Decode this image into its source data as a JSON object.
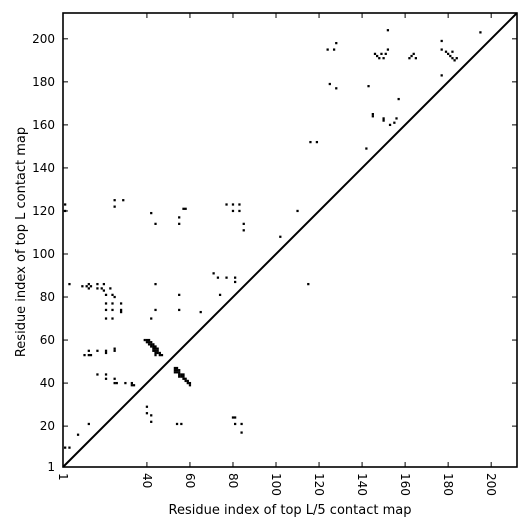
{
  "chart_data": {
    "type": "scatter",
    "xlabel": "Residue index of top L/5 contact map",
    "ylabel": "Residue index of top L contact map",
    "xlim": [
      1,
      212
    ],
    "ylim": [
      1,
      212
    ],
    "xticks": [
      1,
      40,
      60,
      80,
      100,
      120,
      140,
      160,
      180,
      200
    ],
    "yticks": [
      1,
      20,
      40,
      60,
      80,
      100,
      120,
      140,
      160,
      180,
      200
    ],
    "xtick_rotation": -90,
    "grid": false,
    "marker": "square",
    "marker_color": "#000000",
    "diagonal": {
      "from": [
        1,
        1
      ],
      "to": [
        212,
        212
      ],
      "color": "#000000"
    },
    "series": [
      {
        "points_above_diagonal": [
          [
            2,
            120
          ],
          [
            2,
            123
          ],
          [
            4,
            86
          ],
          [
            10,
            85
          ],
          [
            12,
            85
          ],
          [
            13,
            84
          ],
          [
            13,
            86
          ],
          [
            14,
            85
          ],
          [
            17,
            86
          ],
          [
            17,
            84
          ],
          [
            19,
            84
          ],
          [
            20,
            83
          ],
          [
            20,
            86
          ],
          [
            21,
            81
          ],
          [
            23,
            84
          ],
          [
            24,
            81
          ],
          [
            25,
            80
          ],
          [
            21,
            77
          ],
          [
            24,
            77
          ],
          [
            21,
            74
          ],
          [
            24,
            74
          ],
          [
            21,
            70
          ],
          [
            24,
            70
          ],
          [
            28,
            77
          ],
          [
            28,
            74
          ],
          [
            28,
            73
          ],
          [
            11,
            53
          ],
          [
            13,
            55
          ],
          [
            13,
            53
          ],
          [
            14,
            53
          ],
          [
            17,
            55
          ],
          [
            21,
            55
          ],
          [
            21,
            54
          ],
          [
            25,
            55
          ],
          [
            25,
            56
          ],
          [
            17,
            44
          ],
          [
            21,
            44
          ],
          [
            21,
            42
          ],
          [
            25,
            42
          ],
          [
            25,
            40
          ],
          [
            26,
            40
          ],
          [
            30,
            40
          ],
          [
            33,
            40
          ],
          [
            33,
            39
          ],
          [
            34,
            39
          ],
          [
            25,
            125
          ],
          [
            25,
            122
          ],
          [
            29,
            125
          ],
          [
            42,
            119
          ],
          [
            44,
            114
          ],
          [
            44,
            86
          ],
          [
            44,
            74
          ],
          [
            42,
            70
          ],
          [
            55,
            117
          ],
          [
            55,
            114
          ],
          [
            55,
            81
          ],
          [
            55,
            74
          ],
          [
            57,
            121
          ],
          [
            58,
            121
          ],
          [
            65,
            73
          ],
          [
            71,
            91
          ],
          [
            73,
            89
          ],
          [
            74,
            81
          ],
          [
            77,
            89
          ],
          [
            77,
            123
          ],
          [
            80,
            123
          ],
          [
            80,
            120
          ],
          [
            81,
            89
          ],
          [
            81,
            87
          ],
          [
            83,
            120
          ],
          [
            83,
            123
          ],
          [
            85,
            114
          ],
          [
            85,
            111
          ],
          [
            102,
            108
          ],
          [
            110,
            120
          ],
          [
            115,
            86
          ],
          [
            116,
            152
          ],
          [
            119,
            152
          ],
          [
            124,
            195
          ],
          [
            127,
            195
          ],
          [
            128,
            198
          ],
          [
            128,
            177
          ],
          [
            125,
            179
          ],
          [
            142,
            149
          ],
          [
            143,
            178
          ],
          [
            145,
            165
          ],
          [
            145,
            164
          ],
          [
            146,
            193
          ],
          [
            147,
            192
          ],
          [
            148,
            191
          ],
          [
            149,
            193
          ],
          [
            150,
            191
          ],
          [
            151,
            193
          ],
          [
            150,
            163
          ],
          [
            150,
            162
          ],
          [
            152,
            195
          ],
          [
            152,
            204
          ],
          [
            153,
            160
          ],
          [
            155,
            161
          ],
          [
            156,
            163
          ],
          [
            157,
            172
          ],
          [
            162,
            191
          ],
          [
            163,
            192
          ],
          [
            164,
            193
          ],
          [
            165,
            191
          ],
          [
            177,
            195
          ],
          [
            177,
            199
          ],
          [
            177,
            183
          ],
          [
            179,
            194
          ],
          [
            180,
            193
          ],
          [
            181,
            192
          ],
          [
            182,
            191
          ],
          [
            183,
            190
          ],
          [
            182,
            194
          ],
          [
            184,
            191
          ],
          [
            195,
            203
          ]
        ],
        "points_below_diagonal": [
          [
            2,
            10
          ],
          [
            4,
            10
          ],
          [
            8,
            16
          ],
          [
            13,
            21
          ],
          [
            40,
            29
          ],
          [
            40,
            26
          ],
          [
            42,
            25
          ],
          [
            42,
            22
          ],
          [
            54,
            21
          ],
          [
            56,
            21
          ],
          [
            80,
            24
          ],
          [
            81,
            24
          ],
          [
            81,
            21
          ],
          [
            84,
            21
          ],
          [
            84,
            17
          ],
          [
            39,
            60
          ],
          [
            40,
            60
          ],
          [
            41,
            60
          ],
          [
            40,
            59
          ],
          [
            41,
            59
          ],
          [
            42,
            59
          ],
          [
            41,
            58
          ],
          [
            42,
            58
          ],
          [
            43,
            58
          ],
          [
            42,
            57
          ],
          [
            43,
            57
          ],
          [
            44,
            57
          ],
          [
            43,
            56
          ],
          [
            44,
            56
          ],
          [
            45,
            56
          ],
          [
            43,
            55
          ],
          [
            44,
            55
          ],
          [
            45,
            55
          ],
          [
            44,
            54
          ],
          [
            45,
            54
          ],
          [
            46,
            54
          ],
          [
            44,
            53
          ],
          [
            46,
            53
          ],
          [
            47,
            53
          ],
          [
            53,
            47
          ],
          [
            54,
            47
          ],
          [
            53,
            46
          ],
          [
            54,
            46
          ],
          [
            55,
            46
          ],
          [
            53,
            45
          ],
          [
            54,
            45
          ],
          [
            55,
            45
          ],
          [
            55,
            44
          ],
          [
            56,
            44
          ],
          [
            57,
            44
          ],
          [
            55,
            43
          ],
          [
            56,
            43
          ],
          [
            57,
            43
          ],
          [
            57,
            42
          ],
          [
            58,
            42
          ],
          [
            58,
            41
          ],
          [
            59,
            41
          ],
          [
            59,
            40
          ],
          [
            60,
            40
          ],
          [
            60,
            39
          ]
        ]
      }
    ]
  }
}
